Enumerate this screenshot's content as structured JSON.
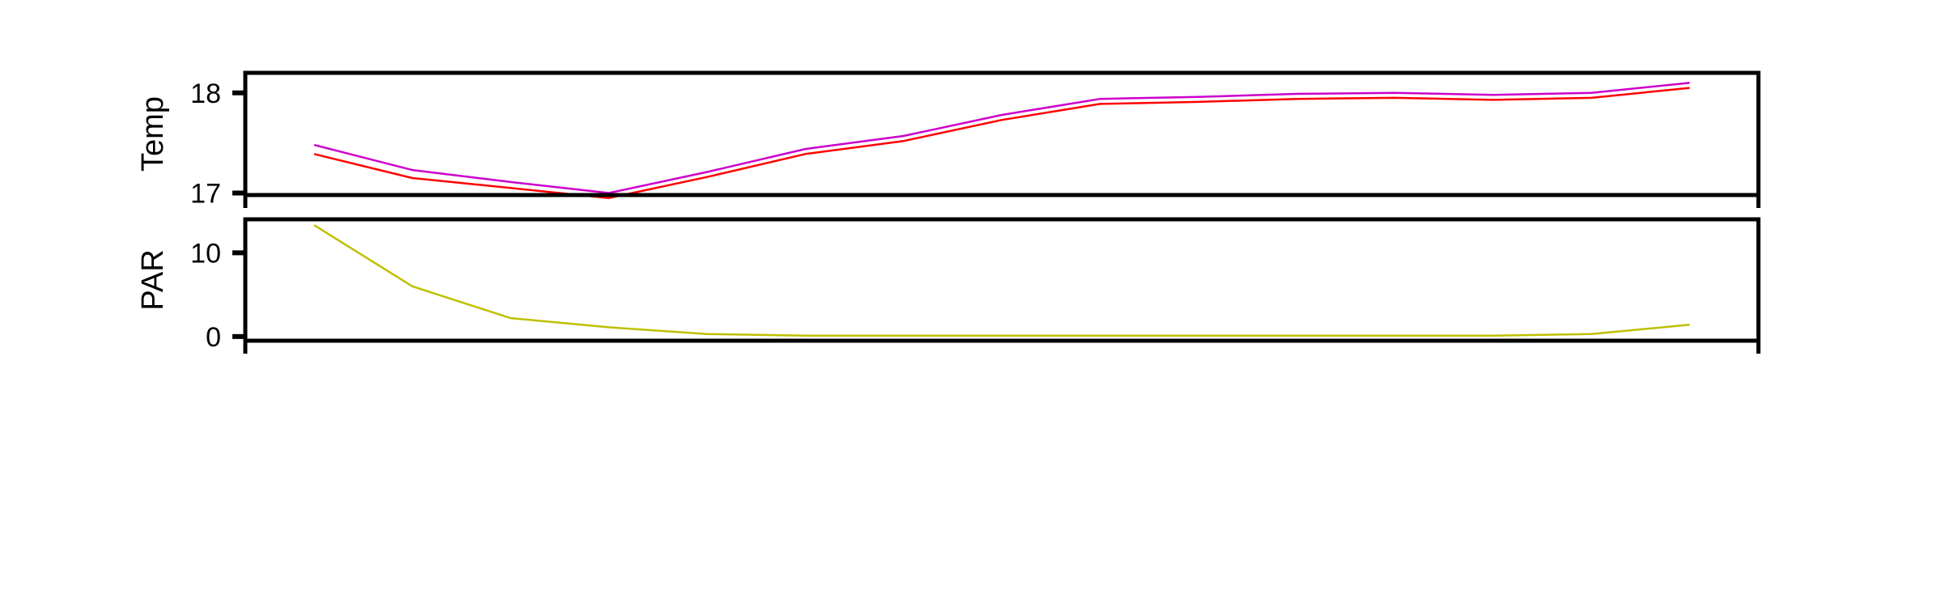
{
  "chart_data": [
    {
      "type": "line",
      "ylabel": "Temp",
      "ylim": [
        16.98,
        18.2
      ],
      "yticks": [
        17,
        18
      ],
      "ytick_labels": [
        "17",
        "18"
      ],
      "x": [
        1,
        2,
        3,
        4,
        5,
        6,
        7,
        8,
        9,
        10,
        11,
        12,
        13,
        14,
        15
      ],
      "xlim": [
        0.3,
        15.7
      ],
      "series": [
        {
          "color": "#cc00cc",
          "values": [
            17.48,
            17.23,
            17.11,
            17.0,
            17.21,
            17.44,
            17.57,
            17.78,
            17.94,
            17.96,
            17.99,
            18.0,
            17.98,
            18.0,
            18.1
          ]
        },
        {
          "color": "#ff0000",
          "values": [
            17.39,
            17.15,
            17.05,
            16.95,
            17.16,
            17.39,
            17.52,
            17.73,
            17.89,
            17.91,
            17.94,
            17.95,
            17.93,
            17.95,
            18.05
          ]
        }
      ]
    },
    {
      "type": "line",
      "ylabel": "PAR",
      "ylim": [
        -0.5,
        14
      ],
      "yticks": [
        0,
        10
      ],
      "ytick_labels": [
        "0",
        "10"
      ],
      "x": [
        1,
        2,
        3,
        4,
        5,
        6,
        7,
        8,
        9,
        10,
        11,
        12,
        13,
        14,
        15
      ],
      "xlim": [
        0.3,
        15.7
      ],
      "series": [
        {
          "color": "#bfbf00",
          "values": [
            13.3,
            6.0,
            2.2,
            1.1,
            0.3,
            0.1,
            0.1,
            0.1,
            0.1,
            0.1,
            0.1,
            0.1,
            0.1,
            0.3,
            1.4
          ]
        }
      ]
    }
  ]
}
